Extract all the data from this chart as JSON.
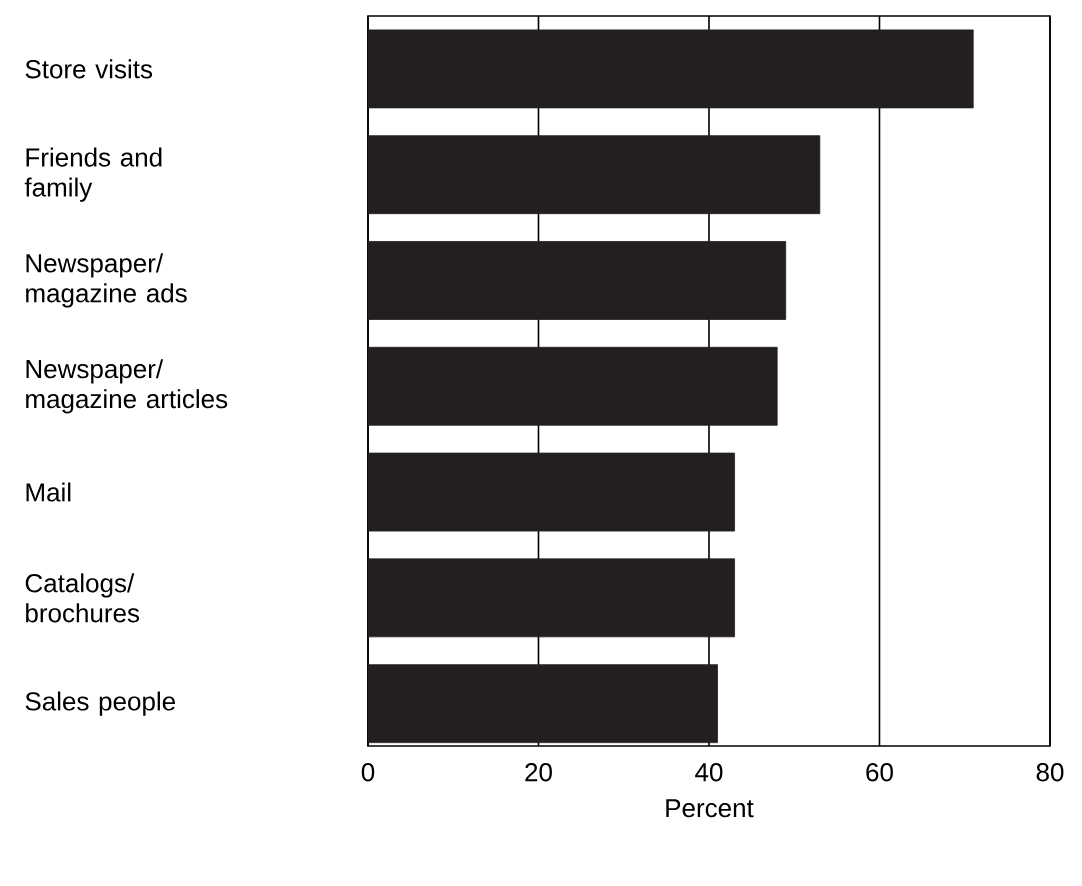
{
  "chart_data": {
    "type": "bar",
    "orientation": "horizontal",
    "xlabel": "Percent",
    "categories": [
      "Store visits",
      "Friends and family",
      "Newspaper/ magazine ads",
      "Newspaper/ magazine articles",
      "Mail",
      "Catalogs/ brochures",
      "Sales people"
    ],
    "values": [
      71,
      53,
      49,
      48,
      43,
      43,
      41
    ],
    "color": "#231f20",
    "xlim": [
      0,
      80
    ],
    "xticks": [
      0,
      20,
      40,
      60,
      80
    ],
    "grid": "x"
  }
}
